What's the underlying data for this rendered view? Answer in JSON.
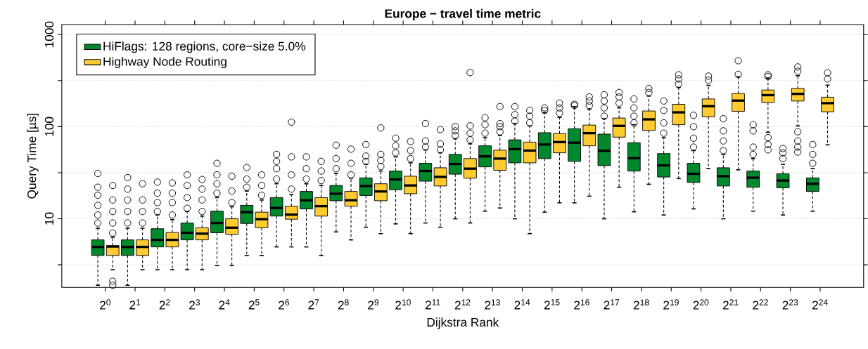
{
  "chart_data": {
    "type": "box",
    "title": "Europe − travel time metric",
    "xlabel": "Dijkstra Rank",
    "ylabel": "Query Time [µs]",
    "categories": [
      "2$^{0}$",
      "2$^{1}$",
      "2$^{2}$",
      "2$^{3}$",
      "2$^{4}$",
      "2$^{5}$",
      "2$^{6}$",
      "2$^{7}$",
      "2$^{8}$",
      "2$^{9}$",
      "2$^{10}$",
      "2$^{11}$",
      "2$^{12}$",
      "2$^{13}$",
      "2$^{14}$",
      "2$^{15}$",
      "2$^{16}$",
      "2$^{17}$",
      "2$^{18}$",
      "2$^{19}$",
      "2$^{20}$",
      "2$^{21}$",
      "2$^{22}$",
      "2$^{23}$",
      "2$^{24}$"
    ],
    "log": true,
    "grid": "y",
    "legend": "top left",
    "ylim": [
      1.8,
      1285
    ],
    "yticks": [
      {
        "value": 3.162,
        "label": null
      },
      10,
      {
        "value": 31.62,
        "label": null
      },
      100,
      {
        "value": 316.2,
        "label": null
      },
      1000
    ],
    "series": [
      {
        "name": "HiFlags: 128 regions, core−size 5.0%",
        "color": "#00892c",
        "boxes": [
          {
            "low": 1.9,
            "q1": 4.0,
            "median": 4.95,
            "q3": 5.9,
            "high": 7.9,
            "outliers": [
              9,
              11,
              14,
              18,
              22,
              31
            ]
          },
          {
            "low": 1.9,
            "q1": 4.0,
            "median": 4.95,
            "q3": 5.9,
            "high": 7.9,
            "outliers": [
              9,
              12,
              16,
              21,
              28
            ]
          },
          {
            "low": 2.8,
            "q1": 4.95,
            "median": 5.9,
            "q3": 7.8,
            "high": 11,
            "outliers": [
              12,
              15,
              19,
              25
            ]
          },
          {
            "low": 2.8,
            "q1": 5.9,
            "median": 7.05,
            "q3": 9.0,
            "high": 12,
            "outliers": [
              13,
              17,
              23,
              30
            ]
          },
          {
            "low": 3.1,
            "q1": 7.05,
            "median": 9.0,
            "q3": 12.1,
            "high": 17,
            "outliers": [
              19,
              24,
              30,
              40
            ]
          },
          {
            "low": 4.0,
            "q1": 8.9,
            "median": 11.8,
            "q3": 14,
            "high": 20,
            "outliers": [
              22,
              27,
              36
            ]
          },
          {
            "low": 4.95,
            "q1": 10.7,
            "median": 13.1,
            "q3": 17,
            "high": 24,
            "outliers": [
              27,
              35,
              42,
              50
            ]
          },
          {
            "low": 4.95,
            "q1": 12.8,
            "median": 15.9,
            "q3": 19.8,
            "high": 24,
            "outliers": [
              27,
              35,
              47
            ]
          },
          {
            "low": 7.2,
            "q1": 15.7,
            "median": 18.7,
            "q3": 23,
            "high": 31,
            "outliers": [
              35,
              45,
              63
            ]
          },
          {
            "low": 8.1,
            "q1": 17.9,
            "median": 22.7,
            "q3": 27.8,
            "high": 39,
            "outliers": [
              42,
              48,
              64
            ]
          },
          {
            "low": 8.8,
            "q1": 20.7,
            "median": 26.7,
            "q3": 33,
            "high": 47,
            "outliers": [
              52,
              62,
              75
            ]
          },
          {
            "low": 9.0,
            "q1": 25.6,
            "median": 33,
            "q3": 40,
            "high": 56,
            "outliers": [
              60,
              70,
              108
            ]
          },
          {
            "low": 10,
            "q1": 30.5,
            "median": 39.3,
            "q3": 50,
            "high": 74,
            "outliers": [
              80,
              90,
              100
            ]
          },
          {
            "low": 12.1,
            "q1": 36.6,
            "median": 47.6,
            "q3": 62,
            "high": 76,
            "outliers": [
              85,
              105,
              125
            ]
          },
          {
            "low": 10,
            "q1": 40.5,
            "median": 57,
            "q3": 72,
            "high": 108,
            "outliers": [
              115,
              135,
              165
            ]
          },
          {
            "low": 11.8,
            "q1": 45,
            "median": 64,
            "q3": 86,
            "high": 142,
            "outliers": [
              150,
              160
            ]
          },
          {
            "low": 14.9,
            "q1": 42,
            "median": 67,
            "q3": 95,
            "high": 165,
            "outliers": [
              170,
              175
            ]
          },
          {
            "low": 10,
            "q1": 37.8,
            "median": 54.7,
            "q3": 83,
            "high": 122,
            "outliers": [
              130,
              160,
              190,
              222
            ]
          },
          {
            "low": 11.9,
            "q1": 33,
            "median": 45.5,
            "q3": 67,
            "high": 105,
            "outliers": [
              110,
              130,
              160,
              200
            ]
          },
          {
            "low": 11,
            "q1": 28.4,
            "median": 38,
            "q3": 51,
            "high": 76,
            "outliers": [
              85,
              110,
              150,
              190
            ]
          },
          {
            "low": 12.8,
            "q1": 24.8,
            "median": 30.8,
            "q3": 40,
            "high": 55,
            "outliers": [
              60,
              75,
              100,
              133
            ]
          },
          {
            "low": 10,
            "q1": 22.7,
            "median": 29,
            "q3": 35.8,
            "high": 50,
            "outliers": [
              55,
              70,
              90,
              122
            ]
          },
          {
            "low": 12.1,
            "q1": 22,
            "median": 27.9,
            "q3": 33,
            "high": 45,
            "outliers": [
              50,
              60,
              90,
              105
            ]
          },
          {
            "low": 11,
            "q1": 21.7,
            "median": 26,
            "q3": 30.8,
            "high": 39,
            "outliers": [
              45,
              52,
              58
            ]
          },
          {
            "low": 12.1,
            "q1": 19.8,
            "median": 24,
            "q3": 27.8,
            "high": 35,
            "outliers": [
              40,
              50,
              64
            ]
          }
        ]
      },
      {
        "name": "Highway Node Routing",
        "color": "#ffcb2f",
        "boxes": [
          {
            "low": 2.8,
            "q1": 4.0,
            "median": 5.0,
            "q3": 5.1,
            "high": 6.3,
            "outliers": [
              1.9,
              2.1,
              7,
              9,
              12,
              16,
              23
            ]
          },
          {
            "low": 2.8,
            "q1": 4.0,
            "median": 4.95,
            "q3": 5.9,
            "high": 7.9,
            "outliers": [
              9,
              12,
              16,
              24
            ]
          },
          {
            "low": 2.8,
            "q1": 4.95,
            "median": 5.9,
            "q3": 7.1,
            "high": 9.8,
            "outliers": [
              11,
              15,
              19,
              24.5
            ]
          },
          {
            "low": 2.8,
            "q1": 5.9,
            "median": 6.9,
            "q3": 8.0,
            "high": 10.7,
            "outliers": [
              12,
              16,
              21,
              26.7
            ]
          },
          {
            "low": 3.1,
            "q1": 6.8,
            "median": 8.0,
            "q3": 10,
            "high": 13.5,
            "outliers": [
              15,
              20,
              29
            ]
          },
          {
            "low": 4.0,
            "q1": 8.0,
            "median": 9.9,
            "q3": 11.8,
            "high": 16,
            "outliers": [
              18,
              23,
              30
            ]
          },
          {
            "low": 4.95,
            "q1": 9.9,
            "median": 11.1,
            "q3": 13.7,
            "high": 18.3,
            "outliers": [
              21,
              30,
              47,
              112
            ]
          },
          {
            "low": 4.0,
            "q1": 10.7,
            "median": 13.7,
            "q3": 17,
            "high": 23,
            "outliers": [
              26,
              33,
              42
            ]
          },
          {
            "low": 5.9,
            "q1": 13.7,
            "median": 15.9,
            "q3": 19.8,
            "high": 27.6,
            "outliers": [
              30,
              40,
              57
            ]
          },
          {
            "low": 6.9,
            "q1": 15.7,
            "median": 19.8,
            "q3": 24,
            "high": 33,
            "outliers": [
              37,
              43,
              50,
              97
            ]
          },
          {
            "low": 6.9,
            "q1": 18.7,
            "median": 23,
            "q3": 29,
            "high": 40.5,
            "outliers": [
              45,
              55,
              69
            ]
          },
          {
            "low": 8.1,
            "q1": 22.7,
            "median": 28.5,
            "q3": 35.8,
            "high": 52,
            "outliers": [
              56,
              65,
              93
            ]
          },
          {
            "low": 9.0,
            "q1": 27.6,
            "median": 35,
            "q3": 45,
            "high": 65,
            "outliers": [
              72,
              85,
              102,
              387
            ]
          },
          {
            "low": 13.1,
            "q1": 33.6,
            "median": 45,
            "q3": 55.6,
            "high": 80,
            "outliers": [
              88,
              100,
              108,
              165
            ]
          },
          {
            "low": 6.9,
            "q1": 40.5,
            "median": 55,
            "q3": 68,
            "high": 102,
            "outliers": [
              110,
              130,
              150
            ]
          },
          {
            "low": 14.9,
            "q1": 52,
            "median": 68,
            "q3": 84,
            "high": 126,
            "outliers": [
              140,
              160,
              180
            ]
          },
          {
            "low": 17.6,
            "q1": 62,
            "median": 85,
            "q3": 104,
            "high": 155,
            "outliers": [
              170,
              190,
              210
            ]
          },
          {
            "low": 22,
            "q1": 77,
            "median": 102,
            "q3": 124,
            "high": 160,
            "outliers": [
              180,
              210,
              235
            ]
          },
          {
            "low": 23.7,
            "q1": 91,
            "median": 120,
            "q3": 148,
            "high": 215,
            "outliers": [
              235,
              260
            ]
          },
          {
            "low": 27.3,
            "q1": 105,
            "median": 143,
            "q3": 175,
            "high": 266,
            "outliers": [
              290,
              330,
              366
            ]
          },
          {
            "low": 35,
            "q1": 128,
            "median": 167,
            "q3": 200,
            "high": 281,
            "outliers": [
              320,
              354
            ]
          },
          {
            "low": 34,
            "q1": 147,
            "median": 192,
            "q3": 229,
            "high": 348,
            "outliers": [
              370,
              520
            ]
          },
          {
            "low": 87,
            "q1": 183,
            "median": 220,
            "q3": 250,
            "high": 337,
            "outliers": [
              56,
              64,
              76,
              350,
              366
            ]
          },
          {
            "low": 102,
            "q1": 190,
            "median": 227,
            "q3": 260,
            "high": 357,
            "outliers": [
              53,
              60,
              70,
              88,
              400,
              445
            ]
          },
          {
            "low": 63.5,
            "q1": 145,
            "median": 180,
            "q3": 209,
            "high": 282,
            "outliers": [
              330,
              385
            ]
          }
        ]
      }
    ]
  }
}
